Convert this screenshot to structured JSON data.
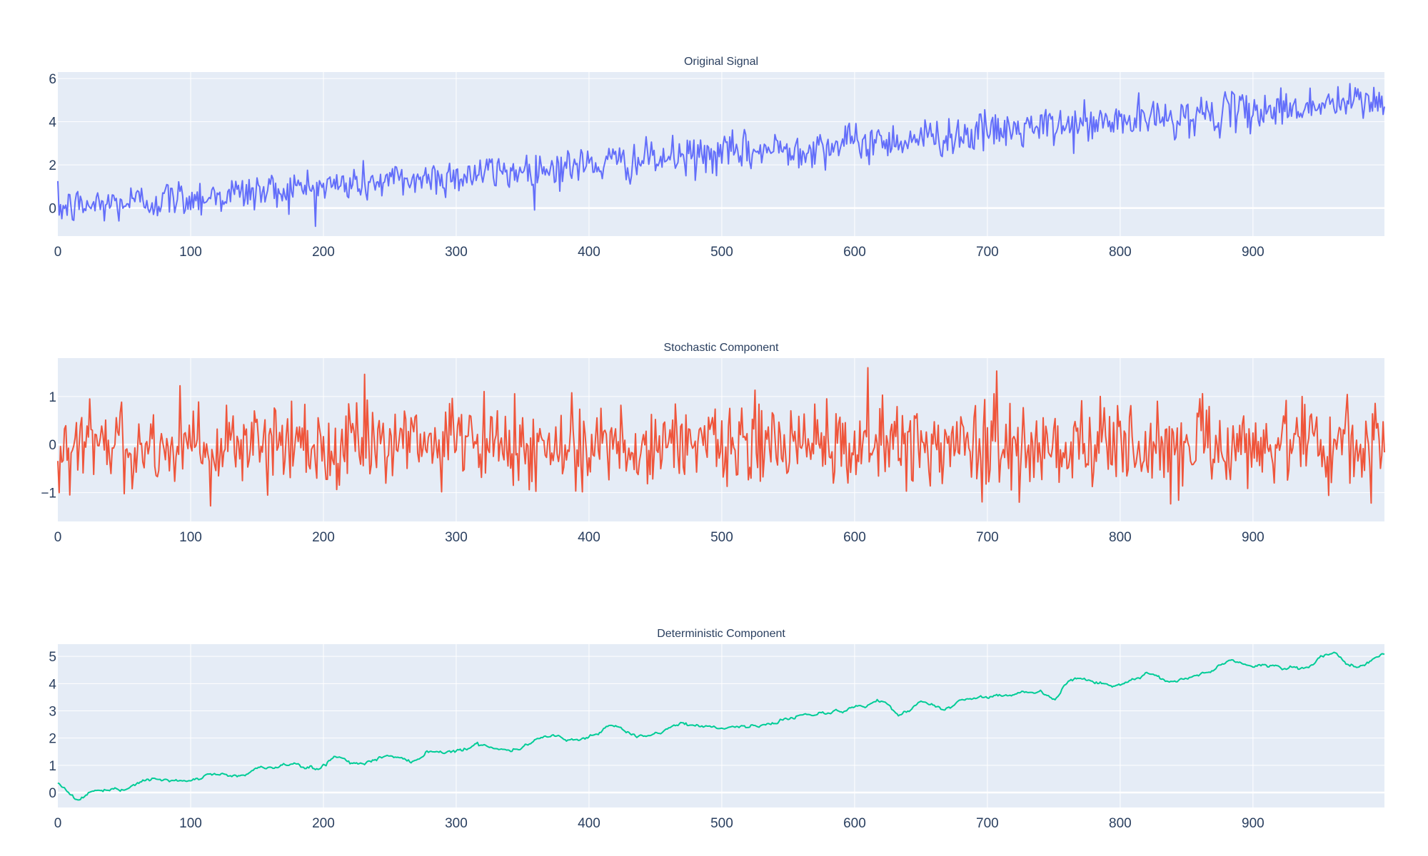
{
  "colors": {
    "background": "#ffffff",
    "plot_bg": "#e5ecf6",
    "grid": "#ffffff",
    "text": "#2a3f5f"
  },
  "chart_data": [
    {
      "type": "line",
      "title": "Original Signal",
      "xlabel": "",
      "ylabel": "",
      "xlim": [
        0,
        999
      ],
      "ylim": [
        -1.3,
        6.3
      ],
      "xticks": [
        0,
        100,
        200,
        300,
        400,
        500,
        600,
        700,
        800,
        900
      ],
      "yticks": [
        0,
        2,
        4,
        6
      ],
      "grid": true,
      "series": [
        {
          "color": "#636efa",
          "note": "1000 points, x = 0..999; noisy linear trend rising from about 0 to about 5",
          "x_start": 0,
          "x_step": 1,
          "trend_start": 0.0,
          "trend_end": 5.0,
          "noise_amplitude": 0.45,
          "min": -0.9,
          "max": 5.8
        }
      ]
    },
    {
      "type": "line",
      "title": "Stochastic Component",
      "xlabel": "",
      "ylabel": "",
      "xlim": [
        0,
        999
      ],
      "ylim": [
        -1.6,
        1.8
      ],
      "xticks": [
        0,
        100,
        200,
        300,
        400,
        500,
        600,
        700,
        800,
        900
      ],
      "yticks": [
        -1,
        0,
        1
      ],
      "grid": true,
      "series": [
        {
          "color": "#ef553b",
          "note": "1000 points, x = 0..999; zero-mean noise roughly within -1.4..1.6",
          "x_start": 0,
          "x_step": 1,
          "noise_amplitude": 0.45,
          "min": -1.4,
          "max": 1.6
        }
      ]
    },
    {
      "type": "line",
      "title": "Deterministic Component",
      "xlabel": "",
      "ylabel": "",
      "xlim": [
        0,
        999
      ],
      "ylim": [
        -0.55,
        5.45
      ],
      "xticks": [
        0,
        100,
        200,
        300,
        400,
        500,
        600,
        700,
        800,
        900
      ],
      "yticks": [
        0,
        1,
        2,
        3,
        4,
        5
      ],
      "grid": true,
      "series": [
        {
          "color": "#00cc96",
          "note": "smooth trend, piecewise through anchor points",
          "anchors": [
            [
              0,
              0.35
            ],
            [
              15,
              -0.25
            ],
            [
              25,
              0.05
            ],
            [
              45,
              0.05
            ],
            [
              65,
              0.45
            ],
            [
              100,
              0.4
            ],
            [
              115,
              0.7
            ],
            [
              135,
              0.6
            ],
            [
              155,
              0.9
            ],
            [
              175,
              1.05
            ],
            [
              195,
              0.85
            ],
            [
              210,
              1.35
            ],
            [
              225,
              1.05
            ],
            [
              250,
              1.35
            ],
            [
              265,
              1.15
            ],
            [
              280,
              1.5
            ],
            [
              300,
              1.55
            ],
            [
              320,
              1.75
            ],
            [
              340,
              1.55
            ],
            [
              370,
              2.1
            ],
            [
              390,
              1.95
            ],
            [
              420,
              2.4
            ],
            [
              440,
              2.0
            ],
            [
              470,
              2.5
            ],
            [
              500,
              2.4
            ],
            [
              530,
              2.45
            ],
            [
              560,
              2.85
            ],
            [
              590,
              3.0
            ],
            [
              620,
              3.35
            ],
            [
              635,
              2.85
            ],
            [
              650,
              3.3
            ],
            [
              665,
              3.1
            ],
            [
              690,
              3.5
            ],
            [
              715,
              3.6
            ],
            [
              735,
              3.7
            ],
            [
              750,
              3.5
            ],
            [
              765,
              4.15
            ],
            [
              800,
              3.95
            ],
            [
              820,
              4.35
            ],
            [
              840,
              4.1
            ],
            [
              860,
              4.35
            ],
            [
              885,
              4.85
            ],
            [
              900,
              4.65
            ],
            [
              935,
              4.55
            ],
            [
              960,
              5.1
            ],
            [
              975,
              4.6
            ],
            [
              999,
              5.05
            ]
          ],
          "min": -0.3,
          "max": 5.15
        }
      ]
    }
  ]
}
